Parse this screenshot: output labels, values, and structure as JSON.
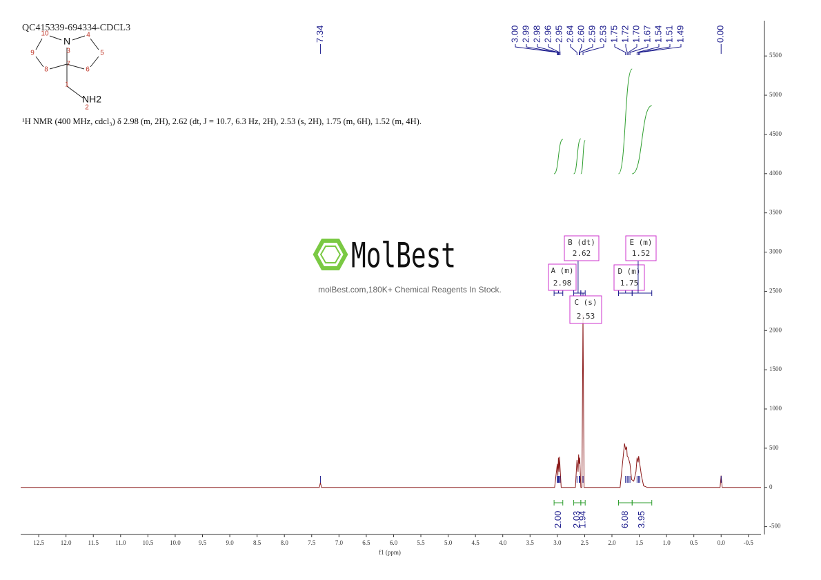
{
  "chart_data": {
    "type": "line",
    "title": "QC415339-694334-CDCL3",
    "structure": {
      "atoms": [
        "10",
        "N",
        "4",
        "3",
        "9",
        "5",
        "8",
        "7",
        "6",
        "1",
        "NH2",
        "2"
      ]
    },
    "description": "¹H NMR (400 MHz, cdcl₃) δ 2.98 (m, 2H), 2.62 (dt, J = 10.7, 6.3 Hz, 2H), 2.53 (s, 2H), 1.75 (m, 6H), 1.52 (m, 4H).",
    "watermark": {
      "logo": "MolBest",
      "tagline": "molBest.com,180K+ Chemical Reagents In Stock."
    },
    "x_label": "f1 (ppm)",
    "color": "#8b1a1a",
    "x": [
      12.83,
      7.36,
      7.34,
      7.32,
      3.05,
      3.0,
      2.99,
      2.98,
      2.97,
      2.96,
      2.95,
      2.93,
      2.67,
      2.64,
      2.62,
      2.61,
      2.6,
      2.59,
      2.57,
      2.55,
      2.53,
      2.51,
      1.85,
      1.8,
      1.77,
      1.75,
      1.73,
      1.72,
      1.7,
      1.67,
      1.64,
      1.6,
      1.56,
      1.54,
      1.52,
      1.51,
      1.49,
      1.46,
      1.42,
      1.35,
      0.02,
      0.0,
      -0.02,
      -0.73
    ],
    "values": [
      0,
      0,
      60,
      0,
      0,
      300,
      150,
      380,
      200,
      390,
      250,
      0,
      0,
      350,
      200,
      420,
      300,
      380,
      0,
      0,
      2200,
      0,
      0,
      350,
      560,
      480,
      520,
      400,
      380,
      300,
      100,
      80,
      200,
      380,
      320,
      400,
      300,
      150,
      20,
      0,
      0,
      150,
      0,
      0
    ],
    "xlim": [
      12.83,
      -0.73
    ],
    "xticks": [
      12.5,
      {
        "value": 12.0,
        "label": "12.0"
      },
      11.5,
      {
        "value": 11.0,
        "label": "11.0"
      },
      10.5,
      {
        "value": 10.0,
        "label": "10.0"
      },
      9.5,
      {
        "value": 9.0,
        "label": "9.0"
      },
      8.5,
      {
        "value": 8.0,
        "label": "8.0"
      },
      7.5,
      {
        "value": 7.0,
        "label": "7.0"
      },
      6.5,
      {
        "value": 6.0,
        "label": "6.0"
      },
      5.5,
      {
        "value": 5.0,
        "label": "5.0"
      },
      4.5,
      {
        "value": 4.0,
        "label": "4.0"
      },
      3.5,
      {
        "value": 3.0,
        "label": "3.0"
      },
      2.5,
      {
        "value": 2.0,
        "label": "2.0"
      },
      1.5,
      {
        "value": 1.0,
        "label": "1.0"
      },
      0.5,
      {
        "value": 0.0,
        "label": "0.0"
      },
      -0.5
    ],
    "ylim": [
      -600,
      5950
    ],
    "yticks": [
      -500,
      0,
      500,
      1000,
      1500,
      2000,
      2500,
      3000,
      3500,
      4000,
      4500,
      5000,
      5500
    ],
    "peak_labels": [
      {
        "value": 7.34,
        "label": "7.34"
      },
      {
        "value": 3.0,
        "label": "3.00"
      },
      {
        "value": 2.99,
        "label": "2.99"
      },
      {
        "value": 2.98,
        "label": "2.98"
      },
      {
        "value": 2.96,
        "label": "2.96"
      },
      {
        "value": 2.95,
        "label": "2.95"
      },
      {
        "value": 2.64,
        "label": "2.64"
      },
      {
        "value": 2.6,
        "label": "2.60"
      },
      {
        "value": 2.59,
        "label": "2.59"
      },
      {
        "value": 2.53,
        "label": "2.53"
      },
      {
        "value": 1.75,
        "label": "1.75"
      },
      {
        "value": 1.72,
        "label": "1.72"
      },
      {
        "value": 1.7,
        "label": "1.70"
      },
      {
        "value": 1.67,
        "label": "1.67"
      },
      {
        "value": 1.54,
        "label": "1.54"
      },
      {
        "value": 1.51,
        "label": "1.51"
      },
      {
        "value": 1.49,
        "label": "1.49"
      },
      {
        "value": 0.0,
        "label": "0.00"
      }
    ],
    "peak_color": "#1a1a8c",
    "integrals": {
      "ranges": [
        [
          3.06,
          2.9
        ],
        [
          2.7,
          2.57
        ],
        [
          2.57,
          2.49
        ],
        [
          1.88,
          1.63
        ],
        [
          1.63,
          1.27
        ]
      ],
      "values": [
        2,
        2.03,
        1.94,
        6.08,
        3.95
      ],
      "value_labels": [
        "2.00",
        "2.03",
        "1.94",
        "6.08",
        "3.95"
      ],
      "color": "#2e9e2e"
    },
    "multiplets": [
      {
        "name": "A (m)",
        "shift": 2.98
      },
      {
        "name": "B (dt)",
        "shift": 2.62
      },
      {
        "name": "C (s)",
        "shift": 2.53
      },
      {
        "name": "D (m)",
        "shift": 1.75
      },
      {
        "name": "E (m)",
        "shift": 1.52
      }
    ],
    "box_color": "#cc33cc"
  }
}
